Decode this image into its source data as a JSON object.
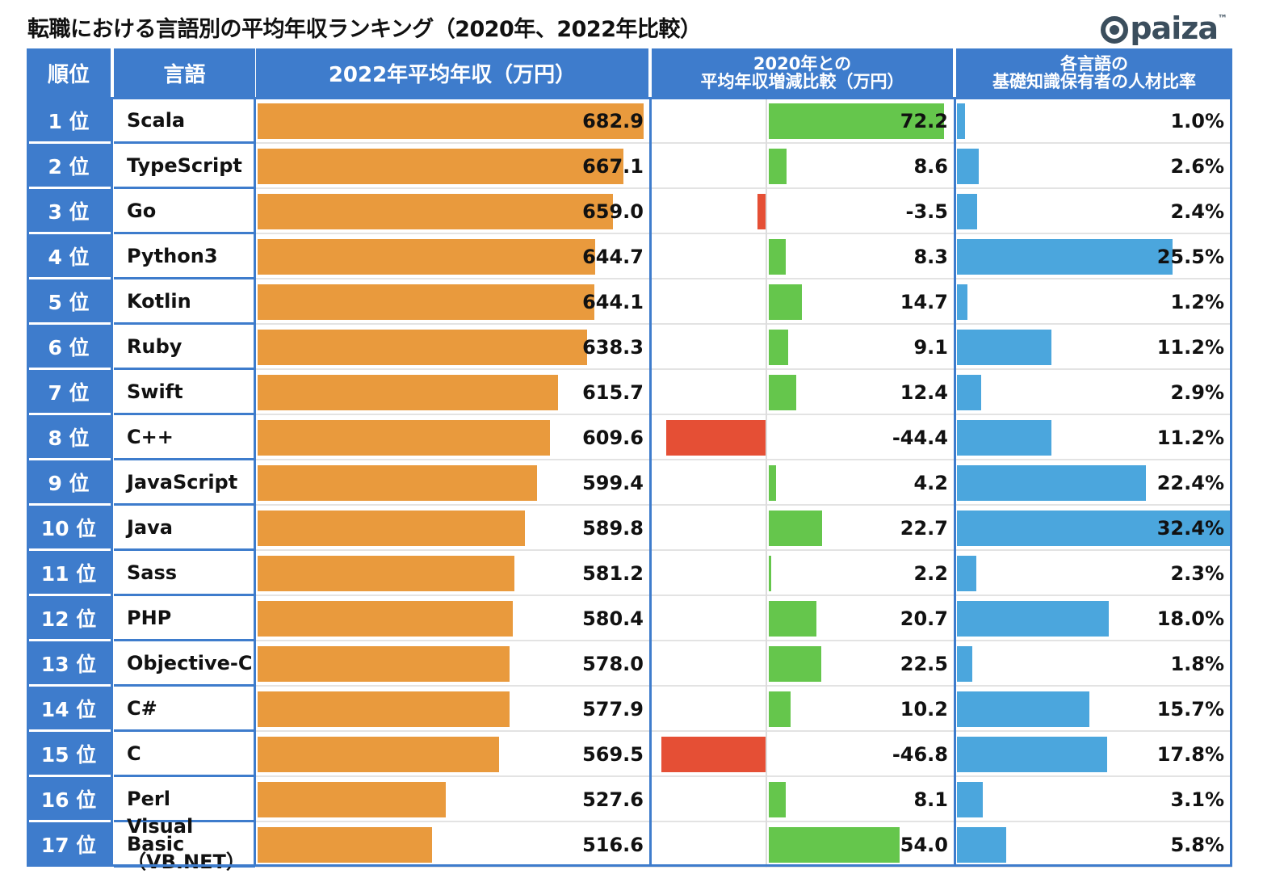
{
  "title": "転職における言語別の平均年収ランキング（2020年、2022年比較）",
  "logo": {
    "text": "paiza",
    "tm": "™"
  },
  "colors": {
    "header": "#3e7ccc",
    "salary": "#e99a3d",
    "increase": "#65c64c",
    "decrease": "#e54f35",
    "ratio": "#4ba6dd"
  },
  "chart_data": {
    "type": "table",
    "columns": [
      "順位",
      "言語",
      "2022年平均年収（万円）",
      "2020年との平均年収増減比較（万円）",
      "各言語の基礎知識保有者の人材比率"
    ],
    "header_lines": {
      "diff": [
        "2020年との",
        "平均年収増減比較（万円）"
      ],
      "ratio": [
        "各言語の",
        "基礎知識保有者の人材比率"
      ]
    },
    "rows": [
      {
        "rank": "1 位",
        "lang": [
          "Scala"
        ],
        "salary": 682.9,
        "salary_label": "682.9",
        "diff": 72.2,
        "diff_label": "72.2",
        "ratio": 1.0,
        "ratio_label": "1.0%"
      },
      {
        "rank": "2 位",
        "lang": [
          "TypeScript"
        ],
        "salary": 667.1,
        "salary_label": "667.1",
        "diff": 8.6,
        "diff_label": "8.6",
        "ratio": 2.6,
        "ratio_label": "2.6%"
      },
      {
        "rank": "3 位",
        "lang": [
          "Go"
        ],
        "salary": 659.0,
        "salary_label": "659.0",
        "diff": -3.5,
        "diff_label": "-3.5",
        "ratio": 2.4,
        "ratio_label": "2.4%"
      },
      {
        "rank": "4 位",
        "lang": [
          "Python3"
        ],
        "salary": 644.7,
        "salary_label": "644.7",
        "diff": 8.3,
        "diff_label": "8.3",
        "ratio": 25.5,
        "ratio_label": "25.5%"
      },
      {
        "rank": "5 位",
        "lang": [
          "Kotlin"
        ],
        "salary": 644.1,
        "salary_label": "644.1",
        "diff": 14.7,
        "diff_label": "14.7",
        "ratio": 1.2,
        "ratio_label": "1.2%"
      },
      {
        "rank": "6 位",
        "lang": [
          "Ruby"
        ],
        "salary": 638.3,
        "salary_label": "638.3",
        "diff": 9.1,
        "diff_label": "9.1",
        "ratio": 11.2,
        "ratio_label": "11.2%"
      },
      {
        "rank": "7 位",
        "lang": [
          "Swift"
        ],
        "salary": 615.7,
        "salary_label": "615.7",
        "diff": 12.4,
        "diff_label": "12.4",
        "ratio": 2.9,
        "ratio_label": "2.9%"
      },
      {
        "rank": "8 位",
        "lang": [
          "C++"
        ],
        "salary": 609.6,
        "salary_label": "609.6",
        "diff": -44.4,
        "diff_label": "-44.4",
        "ratio": 11.2,
        "ratio_label": "11.2%"
      },
      {
        "rank": "9 位",
        "lang": [
          "JavaScript"
        ],
        "salary": 599.4,
        "salary_label": "599.4",
        "diff": 4.2,
        "diff_label": "4.2",
        "ratio": 22.4,
        "ratio_label": "22.4%"
      },
      {
        "rank": "10 位",
        "lang": [
          "Java"
        ],
        "salary": 589.8,
        "salary_label": "589.8",
        "diff": 22.7,
        "diff_label": "22.7",
        "ratio": 32.4,
        "ratio_label": "32.4%"
      },
      {
        "rank": "11 位",
        "lang": [
          "Sass"
        ],
        "salary": 581.2,
        "salary_label": "581.2",
        "diff": 2.2,
        "diff_label": "2.2",
        "ratio": 2.3,
        "ratio_label": "2.3%"
      },
      {
        "rank": "12 位",
        "lang": [
          "PHP"
        ],
        "salary": 580.4,
        "salary_label": "580.4",
        "diff": 20.7,
        "diff_label": "20.7",
        "ratio": 18.0,
        "ratio_label": "18.0%"
      },
      {
        "rank": "13 位",
        "lang": [
          "Objective-C"
        ],
        "salary": 578.0,
        "salary_label": "578.0",
        "diff": 22.5,
        "diff_label": "22.5",
        "ratio": 1.8,
        "ratio_label": "1.8%"
      },
      {
        "rank": "14 位",
        "lang": [
          "C#"
        ],
        "salary": 577.9,
        "salary_label": "577.9",
        "diff": 10.2,
        "diff_label": "10.2",
        "ratio": 15.7,
        "ratio_label": "15.7%"
      },
      {
        "rank": "15 位",
        "lang": [
          "C"
        ],
        "salary": 569.5,
        "salary_label": "569.5",
        "diff": -46.8,
        "diff_label": "-46.8",
        "ratio": 17.8,
        "ratio_label": "17.8%"
      },
      {
        "rank": "16 位",
        "lang": [
          "Perl"
        ],
        "salary": 527.6,
        "salary_label": "527.6",
        "diff": 8.1,
        "diff_label": "8.1",
        "ratio": 3.1,
        "ratio_label": "3.1%"
      },
      {
        "rank": "17 位",
        "lang": [
          "Visual Basic",
          "（VB.NET）"
        ],
        "salary": 516.6,
        "salary_label": "516.6",
        "diff": 54.0,
        "diff_label": "54.0",
        "ratio": 5.8,
        "ratio_label": "5.8%"
      }
    ],
    "salary_axis_min": 380,
    "diff_axis_range": [
      -50,
      75
    ],
    "ratio_axis_max": 32.4
  }
}
